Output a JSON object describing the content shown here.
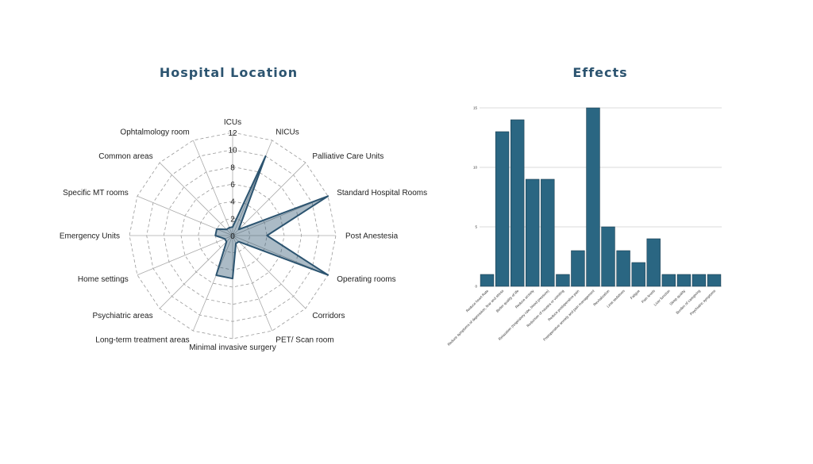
{
  "chart_data": [
    {
      "type": "radar",
      "title": "Hospital Location",
      "categories": [
        "ICUs",
        "NICUs",
        "Palliative Care Units",
        "Standard Hospital Rooms",
        "Post Anestesia",
        "Operating rooms",
        "Corridors",
        "PET/ Scan room",
        "Minimal invasive surgery",
        "Long-term treatment areas",
        "Psychiatric areas",
        "Home settings",
        "Emergency Units",
        "Specific MT rooms",
        "Common areas",
        "Ophtalmology room"
      ],
      "values": [
        1,
        10,
        1,
        12,
        4,
        12,
        1,
        1,
        5,
        5,
        1,
        1,
        2,
        2,
        1,
        1
      ],
      "ticks": [
        "0",
        "2",
        "4",
        "6",
        "8",
        "10",
        "12"
      ],
      "rmax": 12,
      "grid": true,
      "fill_color": "#2c5470",
      "line_color": "#2c5470"
    },
    {
      "type": "bar",
      "title": "Effects",
      "categories": [
        "Reduce heart Rate",
        "Reduce symptoms of depression, fear and stress",
        "Better quality of life",
        "Reduce anxiety",
        "Relaxation (respiratory rate, blood pressure)",
        "Reduction of nausea or vomiting",
        "Reduce postoperative pain",
        "Postoperative anxiety and pain management",
        "Revitalization",
        "Less sedatives",
        "Fatigue",
        "Pain levels",
        "Liver function",
        "Sleep quality",
        "Burden of caregiving",
        "Psychiatric symptoms"
      ],
      "values": [
        1,
        13,
        14,
        9,
        9,
        1,
        3,
        15,
        5,
        3,
        2,
        4,
        1,
        1,
        1,
        1
      ],
      "yticks": [
        "0",
        "5",
        "10",
        "15"
      ],
      "ylim": [
        0,
        15
      ],
      "grid": true,
      "bar_color": "#2a6682"
    }
  ]
}
